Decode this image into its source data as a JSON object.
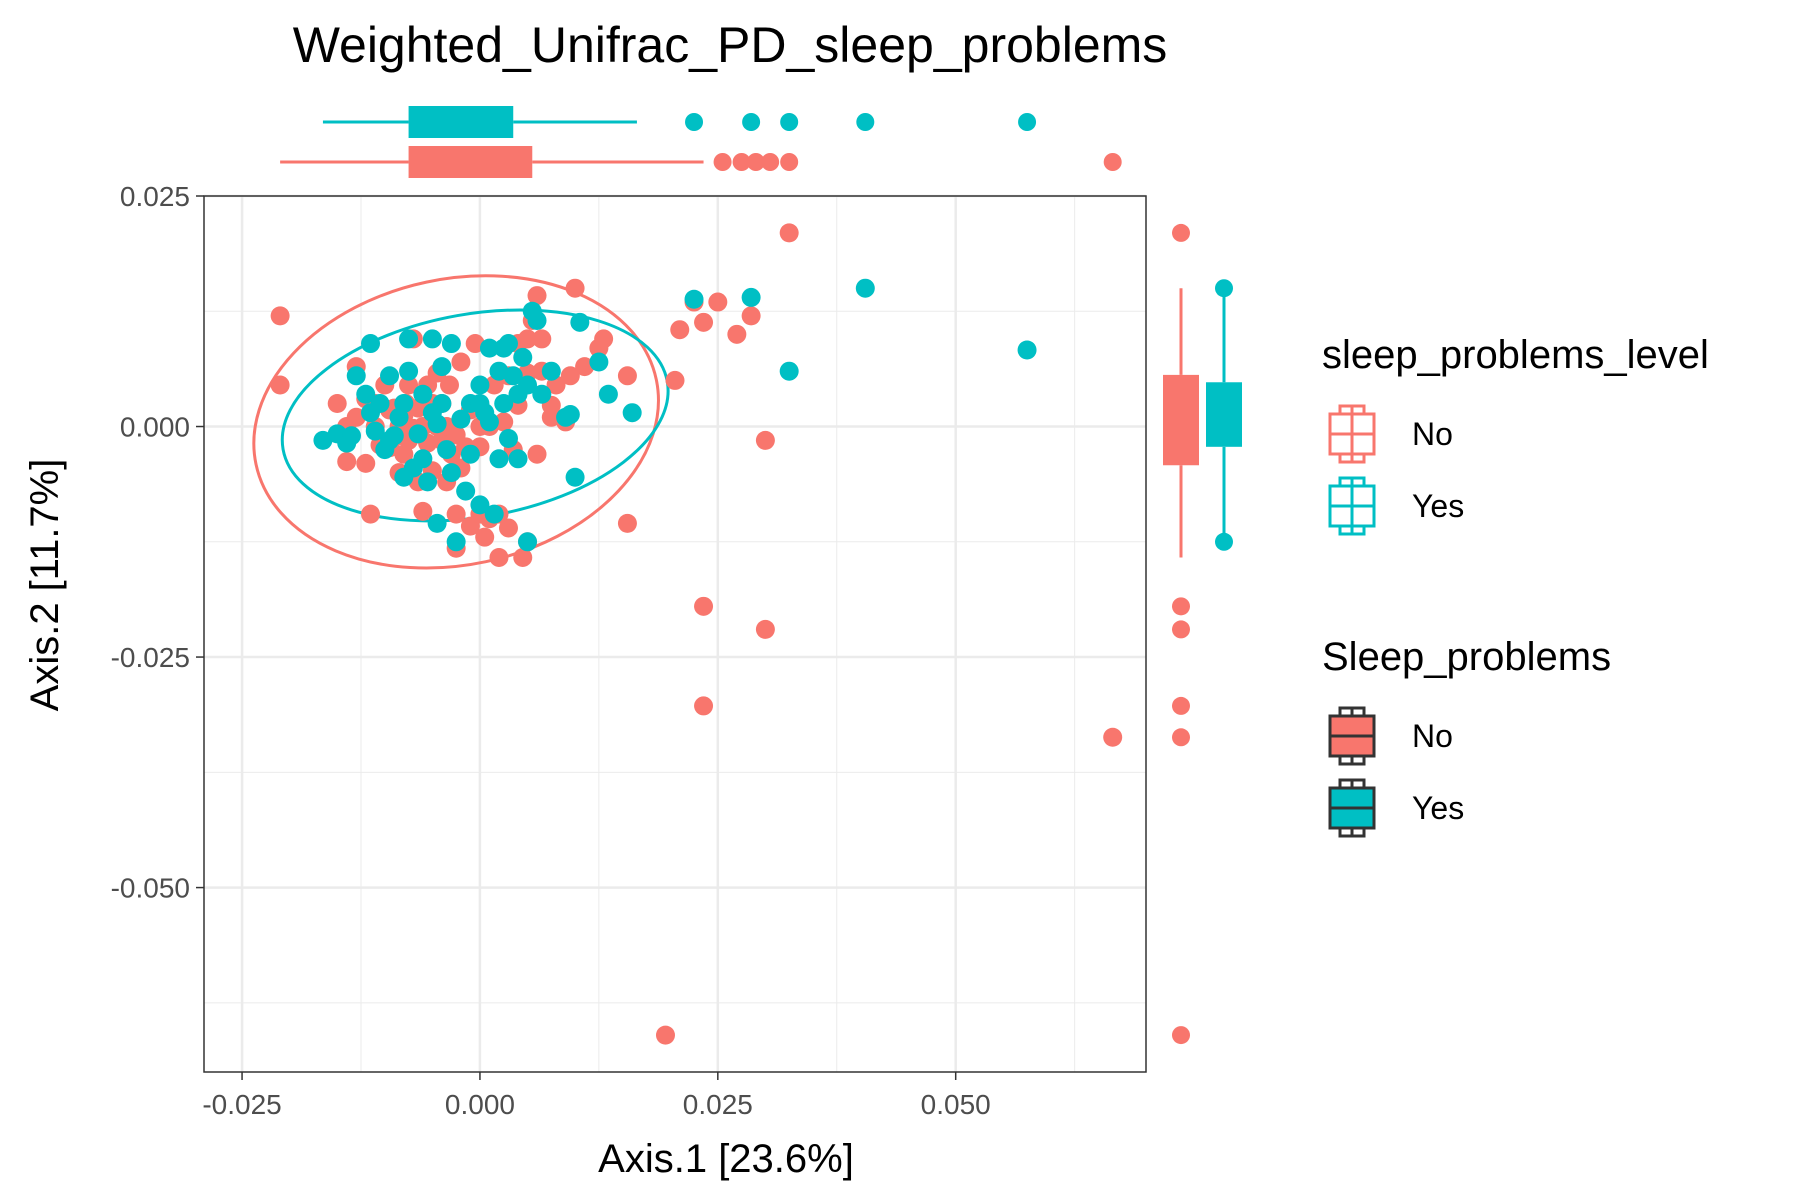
{
  "chart_data": {
    "type": "scatter",
    "title": "Weighted_Unifrac_PD_sleep_problems",
    "xlabel": "Axis.1   [23.6%]",
    "ylabel": "Axis.2   [11.7%]",
    "xlim": [
      -0.029,
      0.07
    ],
    "ylim": [
      -0.07,
      0.025
    ],
    "xticks": [
      -0.025,
      0.0,
      0.025,
      0.05
    ],
    "xtick_labels": [
      "-0.025",
      "0.000",
      "0.025",
      "0.050"
    ],
    "yticks": [
      0.025,
      0.0,
      -0.025,
      -0.05
    ],
    "ytick_labels": [
      "0.025",
      "0.000",
      "-0.025",
      "-0.050"
    ],
    "grid": true,
    "colors": {
      "No": "#F8766D",
      "Yes": "#00BFC4"
    },
    "series": [
      {
        "name": "No",
        "color": "#F8766D",
        "points": [
          [
            -0.021,
            0.012
          ],
          [
            -0.021,
            0.0045
          ],
          [
            -0.015,
            0.0025
          ],
          [
            -0.014,
            0.0
          ],
          [
            -0.014,
            -0.0038
          ],
          [
            -0.013,
            0.0065
          ],
          [
            -0.013,
            0.001
          ],
          [
            -0.012,
            -0.004
          ],
          [
            -0.0115,
            -0.0095
          ],
          [
            -0.011,
            0.0025
          ],
          [
            -0.011,
            0.0
          ],
          [
            -0.0105,
            -0.002
          ],
          [
            -0.01,
            0.0045
          ],
          [
            -0.012,
            0.003
          ],
          [
            -0.0095,
            0.0018
          ],
          [
            -0.0095,
            -0.0023
          ],
          [
            -0.009,
            0.002
          ],
          [
            -0.009,
            -0.0012
          ],
          [
            -0.0085,
            0.0
          ],
          [
            -0.0085,
            -0.005
          ],
          [
            -0.008,
            0.0012
          ],
          [
            -0.008,
            -0.003
          ],
          [
            -0.0078,
            0.0025
          ],
          [
            -0.0075,
            0.0045
          ],
          [
            -0.0075,
            -0.0015
          ],
          [
            -0.007,
            -0.0002
          ],
          [
            -0.007,
            0.0095
          ],
          [
            -0.0065,
            0.002
          ],
          [
            -0.0065,
            -0.006
          ],
          [
            -0.006,
            0.0
          ],
          [
            -0.006,
            -0.0092
          ],
          [
            -0.0055,
            0.0045
          ],
          [
            -0.0055,
            -0.0018
          ],
          [
            -0.005,
            0.0025
          ],
          [
            -0.005,
            -0.0048
          ],
          [
            -0.0045,
            0.0
          ],
          [
            -0.0045,
            0.0058
          ],
          [
            -0.004,
            -0.0015
          ],
          [
            -0.004,
            0.0025
          ],
          [
            -0.0035,
            0.0
          ],
          [
            -0.0035,
            -0.006
          ],
          [
            -0.0032,
            0.0045
          ],
          [
            -0.003,
            -0.003
          ],
          [
            -0.0025,
            -0.0009
          ],
          [
            -0.0025,
            -0.0095
          ],
          [
            -0.002,
            0.007
          ],
          [
            -0.002,
            -0.0045
          ],
          [
            -0.0015,
            -0.0022
          ],
          [
            -0.001,
            0.0018
          ],
          [
            -0.001,
            -0.0108
          ],
          [
            -0.0005,
            0.009
          ],
          [
            0.0,
            -0.0095
          ],
          [
            0.0,
            0.0
          ],
          [
            0.0,
            -0.0022
          ],
          [
            0.0005,
            -0.012
          ],
          [
            0.001,
            0.0
          ],
          [
            0.001,
            -0.01
          ],
          [
            0.0015,
            0.0045
          ],
          [
            0.002,
            -0.0142
          ],
          [
            0.002,
            -0.0095
          ],
          [
            0.0025,
            0.0005
          ],
          [
            0.003,
            0.0055
          ],
          [
            0.003,
            -0.011
          ],
          [
            0.0035,
            -0.0025
          ],
          [
            0.004,
            0.0023
          ],
          [
            0.004,
            0.009
          ],
          [
            0.0045,
            -0.0142
          ],
          [
            0.005,
            0.0058
          ],
          [
            0.005,
            -0.0125
          ],
          [
            0.005,
            0.0095
          ],
          [
            0.0055,
            0.0115
          ],
          [
            0.006,
            0.0142
          ],
          [
            0.006,
            -0.003
          ],
          [
            0.0065,
            0.0095
          ],
          [
            0.0065,
            0.006
          ],
          [
            0.0075,
            0.001
          ],
          [
            0.008,
            0.0045
          ],
          [
            0.009,
            0.0005
          ],
          [
            0.0095,
            0.0055
          ],
          [
            0.01,
            0.015
          ],
          [
            0.011,
            0.0065
          ],
          [
            0.0125,
            0.0085
          ],
          [
            0.013,
            0.0095
          ],
          [
            0.0155,
            0.0055
          ],
          [
            0.0155,
            -0.0105
          ],
          [
            0.0205,
            0.005
          ],
          [
            0.021,
            0.0105
          ],
          [
            0.0225,
            0.0135
          ],
          [
            0.0235,
            0.0113
          ],
          [
            0.025,
            0.0135
          ],
          [
            0.027,
            0.01
          ],
          [
            0.0285,
            0.012
          ],
          [
            0.03,
            -0.0015
          ],
          [
            0.0325,
            0.021
          ],
          [
            0.0235,
            -0.0195
          ],
          [
            0.03,
            -0.022
          ],
          [
            0.0235,
            -0.0303
          ],
          [
            0.0665,
            -0.0337
          ],
          [
            0.0195,
            -0.066
          ],
          [
            -0.0025,
            -0.0132
          ],
          [
            0.0075,
            0.0023
          ]
        ]
      },
      {
        "name": "Yes",
        "color": "#00BFC4",
        "points": [
          [
            -0.0165,
            -0.0015
          ],
          [
            -0.015,
            -0.0008
          ],
          [
            -0.014,
            -0.0018
          ],
          [
            -0.0135,
            -0.001
          ],
          [
            -0.013,
            0.0055
          ],
          [
            -0.012,
            0.0035
          ],
          [
            -0.0115,
            0.009
          ],
          [
            -0.0115,
            0.0015
          ],
          [
            -0.011,
            -0.0005
          ],
          [
            -0.0105,
            0.0025
          ],
          [
            -0.01,
            -0.0025
          ],
          [
            -0.0095,
            -0.0015
          ],
          [
            -0.0095,
            0.0055
          ],
          [
            -0.009,
            -0.001
          ],
          [
            -0.0085,
            0.001
          ],
          [
            -0.008,
            0.0025
          ],
          [
            -0.008,
            -0.0055
          ],
          [
            -0.0075,
            0.006
          ],
          [
            -0.0075,
            0.0095
          ],
          [
            -0.007,
            -0.0045
          ],
          [
            -0.0065,
            -0.0008
          ],
          [
            -0.006,
            0.0035
          ],
          [
            -0.006,
            -0.0035
          ],
          [
            -0.0055,
            -0.006
          ],
          [
            -0.005,
            0.0015
          ],
          [
            -0.005,
            0.0095
          ],
          [
            -0.0045,
            -0.0105
          ],
          [
            -0.004,
            0.0025
          ],
          [
            -0.004,
            0.0065
          ],
          [
            -0.0035,
            -0.0025
          ],
          [
            -0.003,
            0.009
          ],
          [
            -0.003,
            -0.005
          ],
          [
            -0.0025,
            -0.0125
          ],
          [
            -0.002,
            0.0008
          ],
          [
            -0.0015,
            -0.007
          ],
          [
            -0.001,
            0.0025
          ],
          [
            -0.001,
            -0.003
          ],
          [
            0.0,
            0.0045
          ],
          [
            0.0,
            -0.0085
          ],
          [
            0.0005,
            0.0015
          ],
          [
            0.001,
            0.0085
          ],
          [
            0.001,
            0.0005
          ],
          [
            0.0015,
            -0.0095
          ],
          [
            0.002,
            0.006
          ],
          [
            0.002,
            -0.0035
          ],
          [
            0.0025,
            0.0025
          ],
          [
            0.0025,
            0.0085
          ],
          [
            0.003,
            0.009
          ],
          [
            0.003,
            -0.0013
          ],
          [
            0.0035,
            0.0055
          ],
          [
            0.004,
            -0.0035
          ],
          [
            0.004,
            0.0035
          ],
          [
            0.0045,
            0.0075
          ],
          [
            0.005,
            0.0045
          ],
          [
            0.005,
            -0.0125
          ],
          [
            0.0055,
            0.0125
          ],
          [
            0.006,
            0.0115
          ],
          [
            0.0065,
            0.0035
          ],
          [
            0.0075,
            0.006
          ],
          [
            0.009,
            0.001
          ],
          [
            0.0095,
            0.0013
          ],
          [
            0.01,
            -0.0055
          ],
          [
            0.0105,
            0.0113
          ],
          [
            0.0135,
            0.0035
          ],
          [
            0.0125,
            0.007
          ],
          [
            0.016,
            0.0015
          ],
          [
            0.0225,
            0.0138
          ],
          [
            0.0285,
            0.014
          ],
          [
            0.0325,
            0.006
          ],
          [
            0.0405,
            0.015
          ],
          [
            0.0575,
            0.0083
          ],
          [
            -0.0045,
            0.0003
          ],
          [
            0.0,
            0.0025
          ]
        ]
      }
    ],
    "ellipses": [
      {
        "series": "No",
        "cx": -0.0025,
        "cy": 0.0005,
        "rx": 0.0215,
        "ry": 0.0155,
        "angle": 12
      },
      {
        "series": "Yes",
        "cx": -0.0005,
        "cy": 0.0012,
        "rx": 0.0205,
        "ry": 0.011,
        "angle": 10
      }
    ],
    "top_boxplots": [
      {
        "series": "Yes",
        "whisker": [
          -0.0165,
          0.0165
        ],
        "box": [
          -0.0075,
          0.0035
        ],
        "median": -0.0015,
        "outliers": [
          0.0225,
          0.0285,
          0.0325,
          0.0405,
          0.0575
        ]
      },
      {
        "series": "No",
        "whisker": [
          -0.021,
          0.0235
        ],
        "box": [
          -0.0075,
          0.0055
        ],
        "median": -0.0005,
        "outliers": [
          0.0255,
          0.0275,
          0.029,
          0.0305,
          0.0325,
          0.0665
        ]
      }
    ],
    "right_boxplots": [
      {
        "series": "No",
        "whisker": [
          -0.0142,
          0.015
        ],
        "box": [
          -0.0042,
          0.0056
        ],
        "median": 0.0008,
        "outliers": [
          0.021,
          -0.0195,
          -0.022,
          -0.0303,
          -0.0337,
          -0.066
        ]
      },
      {
        "series": "Yes",
        "whisker": [
          -0.0125,
          0.015
        ],
        "box": [
          -0.0022,
          0.0048
        ],
        "median": 0.0012,
        "outliers": []
      }
    ],
    "legends": [
      {
        "title": "sleep_problems_level",
        "style": "outline",
        "entries": [
          "No",
          "Yes"
        ]
      },
      {
        "title": "Sleep_problems",
        "style": "filled",
        "entries": [
          "No",
          "Yes"
        ]
      }
    ]
  }
}
